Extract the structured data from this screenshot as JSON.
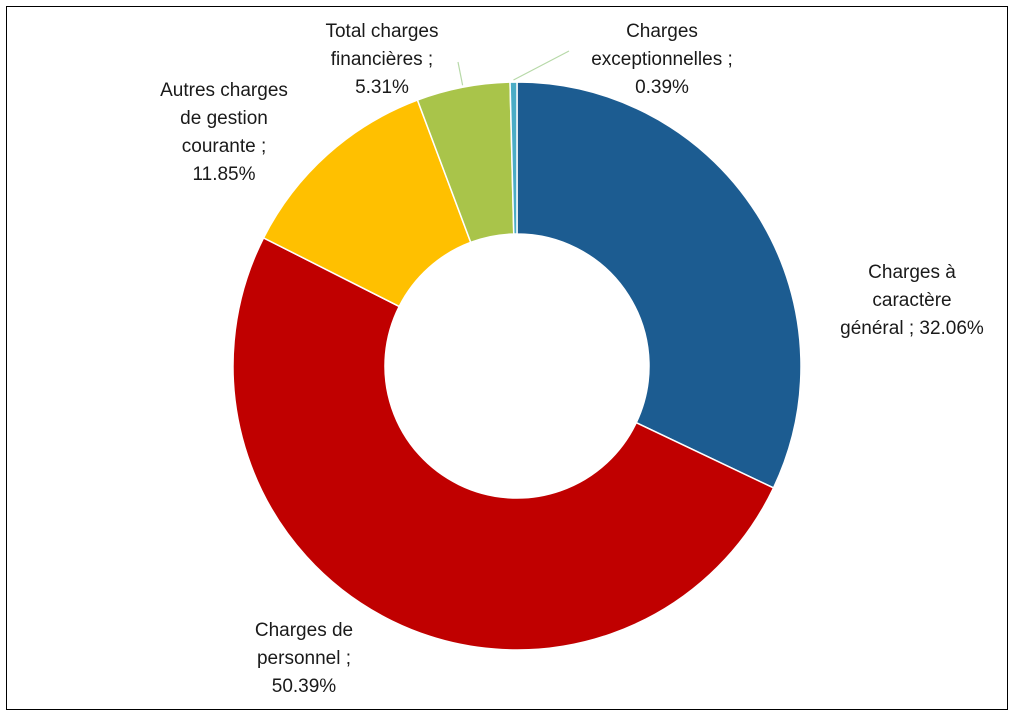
{
  "chart_data": {
    "type": "pie",
    "donut": true,
    "start_angle_deg": 0,
    "direction": "clockwise",
    "slices": [
      {
        "name": "Charges à caractère général",
        "value": 32.06,
        "color": "#1c5c91",
        "label_lines": [
          "Charges à",
          "caractère",
          "général  ; 32.06%"
        ]
      },
      {
        "name": "Charges de personnel",
        "value": 50.39,
        "color": "#c00000",
        "label_lines": [
          "Charges de",
          "personnel  ;",
          "50.39%"
        ]
      },
      {
        "name": "Autres charges de gestion courante",
        "value": 11.85,
        "color": "#ffc000",
        "label_lines": [
          "Autres charges",
          "de gestion",
          "courante  ;",
          "11.85%"
        ]
      },
      {
        "name": "Total charges financières",
        "value": 5.31,
        "color": "#a9c44a",
        "label_lines": [
          "Total charges",
          "financières ;",
          "5.31%"
        ]
      },
      {
        "name": "Charges exceptionnelles",
        "value": 0.39,
        "color": "#4bacc6",
        "label_lines": [
          "Charges",
          "exceptionnelles ;",
          "0.39%"
        ]
      }
    ],
    "leader_line_color": "#b7d9a8"
  }
}
